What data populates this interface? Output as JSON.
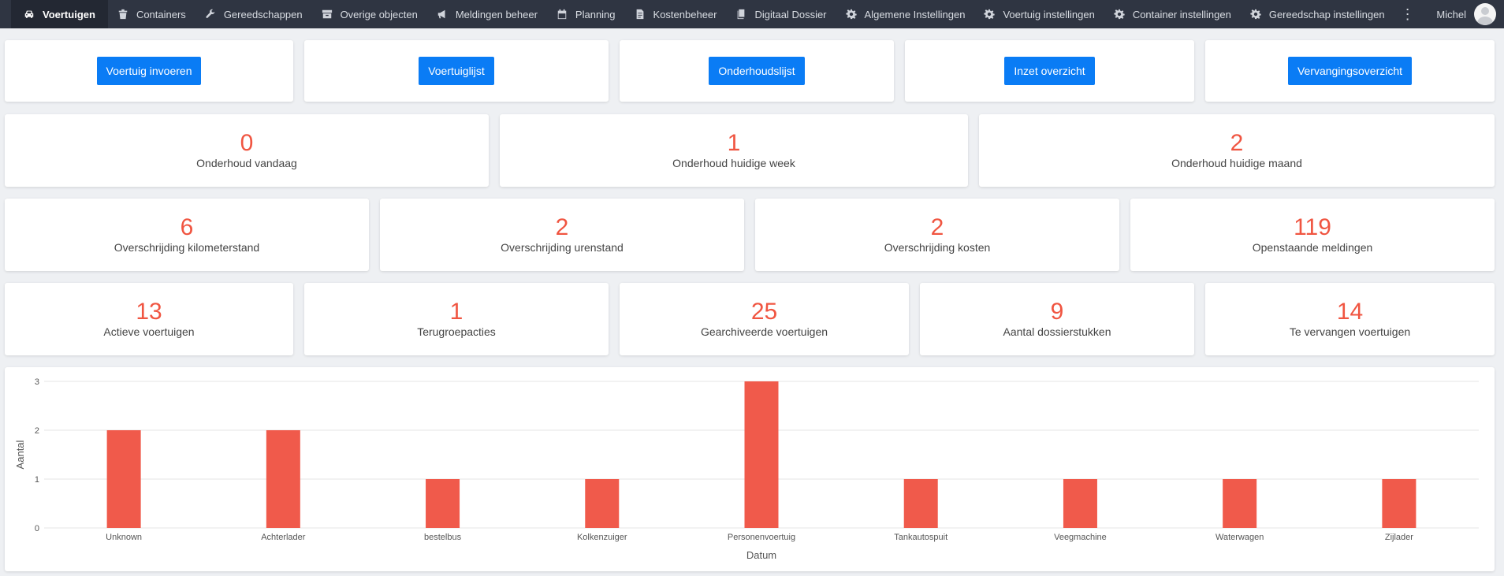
{
  "nav": {
    "items": [
      {
        "label": "Voertuigen",
        "icon": "car-icon"
      },
      {
        "label": "Containers",
        "icon": "trash-icon"
      },
      {
        "label": "Gereedschappen",
        "icon": "wrench-icon"
      },
      {
        "label": "Overige objecten",
        "icon": "archive-icon"
      },
      {
        "label": "Meldingen beheer",
        "icon": "bullhorn-icon"
      },
      {
        "label": "Planning",
        "icon": "calendar-icon"
      },
      {
        "label": "Kostenbeheer",
        "icon": "invoice-icon"
      },
      {
        "label": "Digitaal Dossier",
        "icon": "documents-icon"
      },
      {
        "label": "Algemene Instellingen",
        "icon": "gear-icon"
      },
      {
        "label": "Voertuig instellingen",
        "icon": "gear-icon"
      },
      {
        "label": "Container instellingen",
        "icon": "gear-icon"
      },
      {
        "label": "Gereedschap instellingen",
        "icon": "gear-icon"
      }
    ],
    "more": "⋮",
    "user": "Michel"
  },
  "actions": [
    "Voertuig invoeren",
    "Voertuiglijst",
    "Onderhoudslijst",
    "Inzet overzicht",
    "Vervangingsoverzicht"
  ],
  "stats_row1": [
    {
      "value": "0",
      "label": "Onderhoud vandaag"
    },
    {
      "value": "1",
      "label": "Onderhoud huidige week"
    },
    {
      "value": "2",
      "label": "Onderhoud huidige maand"
    }
  ],
  "stats_row2": [
    {
      "value": "6",
      "label": "Overschrijding kilometerstand"
    },
    {
      "value": "2",
      "label": "Overschrijding urenstand"
    },
    {
      "value": "2",
      "label": "Overschrijding kosten"
    },
    {
      "value": "119",
      "label": "Openstaande meldingen"
    }
  ],
  "stats_row3": [
    {
      "value": "13",
      "label": "Actieve voertuigen"
    },
    {
      "value": "1",
      "label": "Terugroepacties"
    },
    {
      "value": "25",
      "label": "Gearchiveerde voertuigen"
    },
    {
      "value": "9",
      "label": "Aantal dossierstukken"
    },
    {
      "value": "14",
      "label": "Te vervangen voertuigen"
    }
  ],
  "colors": {
    "accent": "#0a7cf5",
    "stat": "#f05541",
    "bar": "#f05a4b",
    "nav_bg": "#2f3542"
  },
  "chart_data": {
    "type": "bar",
    "categories": [
      "Unknown",
      "Achterlader",
      "bestelbus",
      "Kolkenzuiger",
      "Personenvoertuig",
      "Tankautospuit",
      "Veegmachine",
      "Waterwagen",
      "Zijlader"
    ],
    "values": [
      2,
      2,
      1,
      1,
      3,
      1,
      1,
      1,
      1
    ],
    "xlabel": "Datum",
    "ylabel": "Aantal",
    "yticks": [
      "0",
      "1",
      "2",
      "3"
    ],
    "ylim": [
      0,
      3
    ],
    "grid": true
  }
}
